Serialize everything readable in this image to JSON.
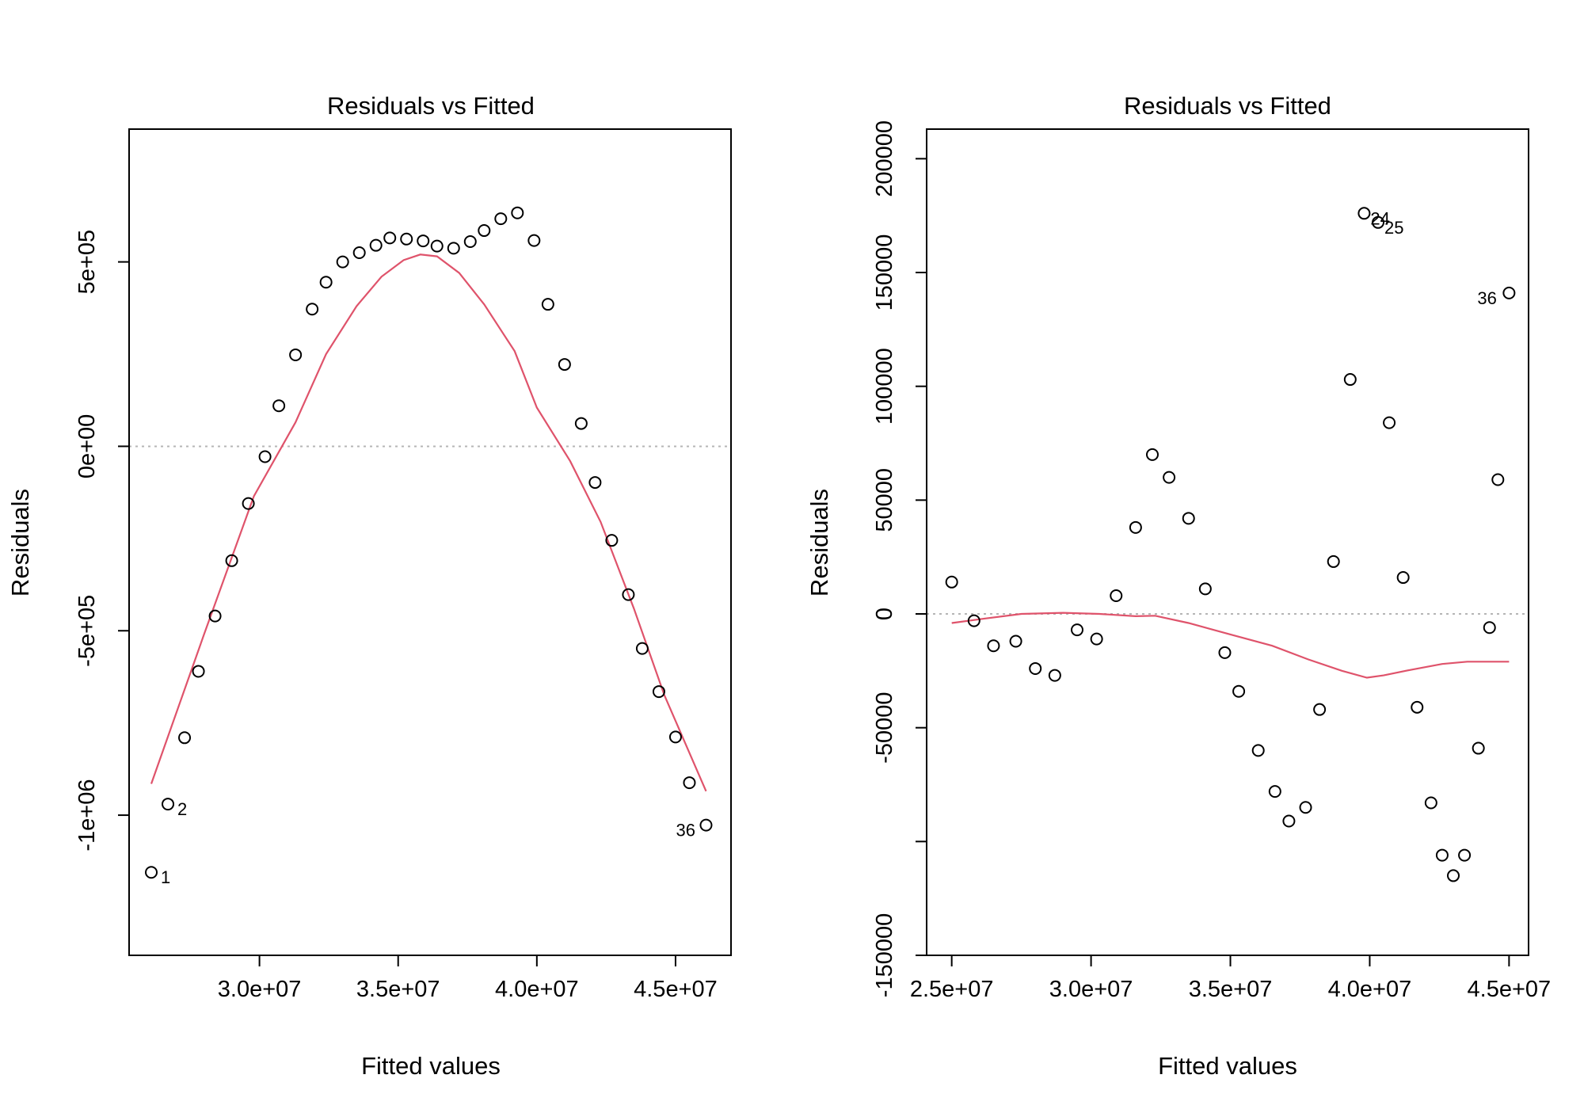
{
  "chart_data": [
    {
      "type": "scatter",
      "title": "Residuals vs Fitted",
      "xlabel": "Fitted values",
      "ylabel": "Residuals",
      "xlim": [
        25300000,
        47000000
      ],
      "ylim": [
        -1380000,
        860000
      ],
      "x_ticks": [
        {
          "value": 30000000,
          "label": "3.0e+07"
        },
        {
          "value": 35000000,
          "label": "3.5e+07"
        },
        {
          "value": 40000000,
          "label": "4.0e+07"
        },
        {
          "value": 45000000,
          "label": "4.5e+07"
        }
      ],
      "y_ticks": [
        {
          "value": -1000000,
          "label": "-1e+06"
        },
        {
          "value": -500000,
          "label": "-5e+05"
        },
        {
          "value": 0,
          "label": "0e+00"
        },
        {
          "value": 500000,
          "label": "5e+05"
        }
      ],
      "reference_line": 0,
      "smooth_color": "#DF536B",
      "reference_color": "#B5B5B5",
      "points": [
        {
          "x": 26100000,
          "y": -1155000,
          "label": "1"
        },
        {
          "x": 26700000,
          "y": -970000,
          "label": "2"
        },
        {
          "x": 27300000,
          "y": -790000
        },
        {
          "x": 27800000,
          "y": -610000
        },
        {
          "x": 28400000,
          "y": -460000
        },
        {
          "x": 29000000,
          "y": -310000
        },
        {
          "x": 29600000,
          "y": -155000
        },
        {
          "x": 30200000,
          "y": -28000
        },
        {
          "x": 30700000,
          "y": 110000
        },
        {
          "x": 31300000,
          "y": 248000
        },
        {
          "x": 31900000,
          "y": 372000
        },
        {
          "x": 32400000,
          "y": 445000
        },
        {
          "x": 33000000,
          "y": 500000
        },
        {
          "x": 33600000,
          "y": 525000
        },
        {
          "x": 34200000,
          "y": 545000
        },
        {
          "x": 34700000,
          "y": 565000
        },
        {
          "x": 35300000,
          "y": 562000
        },
        {
          "x": 35900000,
          "y": 557000
        },
        {
          "x": 36400000,
          "y": 543000
        },
        {
          "x": 37000000,
          "y": 537000
        },
        {
          "x": 37600000,
          "y": 555000
        },
        {
          "x": 38100000,
          "y": 585000
        },
        {
          "x": 38700000,
          "y": 617000
        },
        {
          "x": 39300000,
          "y": 633000
        },
        {
          "x": 39900000,
          "y": 558000
        },
        {
          "x": 40400000,
          "y": 385000
        },
        {
          "x": 41000000,
          "y": 222000
        },
        {
          "x": 41600000,
          "y": 62000
        },
        {
          "x": 42100000,
          "y": -98000
        },
        {
          "x": 42700000,
          "y": -255000
        },
        {
          "x": 43300000,
          "y": -402000
        },
        {
          "x": 43800000,
          "y": -548000
        },
        {
          "x": 44400000,
          "y": -665000
        },
        {
          "x": 45000000,
          "y": -788000
        },
        {
          "x": 45500000,
          "y": -912000
        },
        {
          "x": 46100000,
          "y": -1027000,
          "label": "36"
        }
      ],
      "smooth": [
        {
          "x": 26100000,
          "y": -915000
        },
        {
          "x": 28000000,
          "y": -510000
        },
        {
          "x": 29800000,
          "y": -135000
        },
        {
          "x": 31300000,
          "y": 65000
        },
        {
          "x": 32400000,
          "y": 250000
        },
        {
          "x": 33500000,
          "y": 380000
        },
        {
          "x": 34400000,
          "y": 460000
        },
        {
          "x": 35200000,
          "y": 505000
        },
        {
          "x": 35800000,
          "y": 520000
        },
        {
          "x": 36400000,
          "y": 515000
        },
        {
          "x": 37200000,
          "y": 470000
        },
        {
          "x": 38100000,
          "y": 385000
        },
        {
          "x": 39200000,
          "y": 258000
        },
        {
          "x": 40000000,
          "y": 105000
        },
        {
          "x": 41200000,
          "y": -40000
        },
        {
          "x": 42300000,
          "y": -205000
        },
        {
          "x": 43500000,
          "y": -440000
        },
        {
          "x": 44600000,
          "y": -675000
        },
        {
          "x": 46100000,
          "y": -935000
        }
      ]
    },
    {
      "type": "scatter",
      "title": "Residuals vs Fitted",
      "xlabel": "Fitted values",
      "ylabel": "Residuals",
      "xlim": [
        24100000,
        45700000
      ],
      "ylim": [
        -150000,
        213000
      ],
      "x_ticks": [
        {
          "value": 25000000,
          "label": "2.5e+07"
        },
        {
          "value": 30000000,
          "label": "3.0e+07"
        },
        {
          "value": 35000000,
          "label": "3.5e+07"
        },
        {
          "value": 40000000,
          "label": "4.0e+07"
        },
        {
          "value": 45000000,
          "label": "4.5e+07"
        }
      ],
      "y_ticks": [
        {
          "value": -150000,
          "label": "-150000"
        },
        {
          "value": -100000,
          "label": ""
        },
        {
          "value": -50000,
          "label": "-50000"
        },
        {
          "value": 0,
          "label": "0"
        },
        {
          "value": 50000,
          "label": "50000"
        },
        {
          "value": 100000,
          "label": "100000"
        },
        {
          "value": 150000,
          "label": "150000"
        },
        {
          "value": 200000,
          "label": "200000"
        }
      ],
      "reference_line": 0,
      "smooth_color": "#DF536B",
      "reference_color": "#B5B5B5",
      "points": [
        {
          "x": 25000000,
          "y": 14000
        },
        {
          "x": 25800000,
          "y": -3000
        },
        {
          "x": 26500000,
          "y": -14000
        },
        {
          "x": 27300000,
          "y": -12000
        },
        {
          "x": 28000000,
          "y": -24000
        },
        {
          "x": 28700000,
          "y": -27000
        },
        {
          "x": 29500000,
          "y": -7000
        },
        {
          "x": 30200000,
          "y": -11000
        },
        {
          "x": 30900000,
          "y": 8000
        },
        {
          "x": 31600000,
          "y": 38000
        },
        {
          "x": 32200000,
          "y": 70000
        },
        {
          "x": 32800000,
          "y": 60000
        },
        {
          "x": 33500000,
          "y": 42000
        },
        {
          "x": 34100000,
          "y": 11000
        },
        {
          "x": 34800000,
          "y": -17000
        },
        {
          "x": 35300000,
          "y": -34000
        },
        {
          "x": 36000000,
          "y": -60000
        },
        {
          "x": 36600000,
          "y": -78000
        },
        {
          "x": 37100000,
          "y": -91000
        },
        {
          "x": 37700000,
          "y": -85000
        },
        {
          "x": 38200000,
          "y": -42000
        },
        {
          "x": 38700000,
          "y": 23000
        },
        {
          "x": 39300000,
          "y": 103000
        },
        {
          "x": 39800000,
          "y": 176000,
          "label": "24"
        },
        {
          "x": 40300000,
          "y": 172000,
          "label": "25"
        },
        {
          "x": 40700000,
          "y": 84000
        },
        {
          "x": 41200000,
          "y": 16000
        },
        {
          "x": 41700000,
          "y": -41000
        },
        {
          "x": 42200000,
          "y": -83000
        },
        {
          "x": 42600000,
          "y": -106000
        },
        {
          "x": 43000000,
          "y": -115000
        },
        {
          "x": 43400000,
          "y": -106000
        },
        {
          "x": 43900000,
          "y": -59000
        },
        {
          "x": 44300000,
          "y": -6000
        },
        {
          "x": 44600000,
          "y": 59000
        },
        {
          "x": 45000000,
          "y": 141000,
          "label": "36"
        }
      ],
      "smooth": [
        {
          "x": 25000000,
          "y": -4000
        },
        {
          "x": 26200000,
          "y": -2000
        },
        {
          "x": 27500000,
          "y": 0
        },
        {
          "x": 29000000,
          "y": 500
        },
        {
          "x": 30300000,
          "y": 0
        },
        {
          "x": 31600000,
          "y": -1000
        },
        {
          "x": 32300000,
          "y": -800
        },
        {
          "x": 33500000,
          "y": -4000
        },
        {
          "x": 35000000,
          "y": -9000
        },
        {
          "x": 36500000,
          "y": -14000
        },
        {
          "x": 37800000,
          "y": -20000
        },
        {
          "x": 39000000,
          "y": -25000
        },
        {
          "x": 39900000,
          "y": -28000
        },
        {
          "x": 40500000,
          "y": -27000
        },
        {
          "x": 41500000,
          "y": -24500
        },
        {
          "x": 42600000,
          "y": -22000
        },
        {
          "x": 43500000,
          "y": -21000
        },
        {
          "x": 45000000,
          "y": -21000
        }
      ]
    }
  ]
}
